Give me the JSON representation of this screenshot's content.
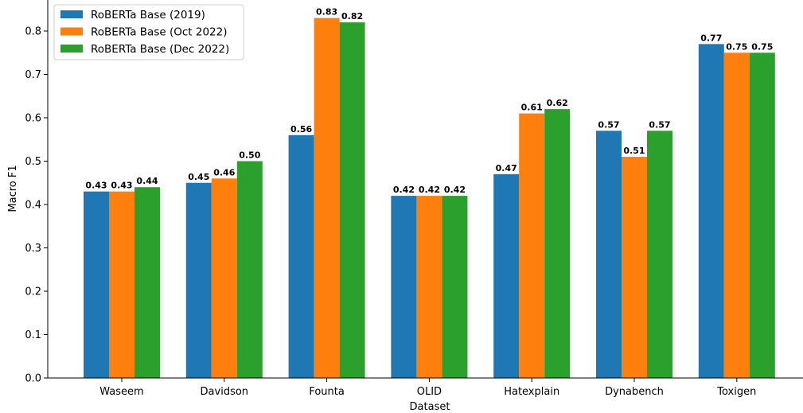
{
  "chart_data": {
    "type": "bar",
    "xlabel": "Dataset",
    "ylabel": "Macro F1",
    "ylim": [
      0.0,
      0.88
    ],
    "yticks": [
      "0.0",
      "0.1",
      "0.2",
      "0.3",
      "0.4",
      "0.5",
      "0.6",
      "0.7",
      "0.8"
    ],
    "categories": [
      "Waseem",
      "Davidson",
      "Founta",
      "OLID",
      "Hatexplain",
      "Dynabench",
      "Toxigen"
    ],
    "series": [
      {
        "name": "RoBERTa Base (2019)",
        "color": "#1f77b4",
        "values": [
          0.43,
          0.45,
          0.56,
          0.42,
          0.47,
          0.57,
          0.77
        ],
        "labels": [
          "0.43",
          "0.45",
          "0.56",
          "0.42",
          "0.47",
          "0.57",
          "0.77"
        ]
      },
      {
        "name": "RoBERTa Base (Oct 2022)",
        "color": "#ff7f0e",
        "values": [
          0.43,
          0.46,
          0.83,
          0.42,
          0.61,
          0.51,
          0.75
        ],
        "labels": [
          "0.43",
          "0.46",
          "0.83",
          "0.42",
          "0.61",
          "0.51",
          "0.75"
        ]
      },
      {
        "name": "RoBERTa Base (Dec 2022)",
        "color": "#2ca02c",
        "values": [
          0.44,
          0.5,
          0.82,
          0.42,
          0.62,
          0.57,
          0.75
        ],
        "labels": [
          "0.44",
          "0.50",
          "0.82",
          "0.42",
          "0.62",
          "0.57",
          "0.75"
        ]
      }
    ],
    "legend_position": "top-left",
    "grid": false
  }
}
